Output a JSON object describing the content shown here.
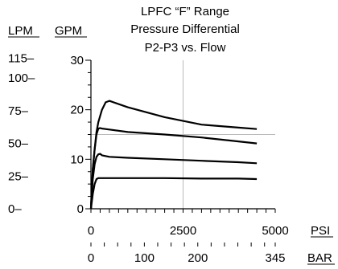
{
  "chart_data": {
    "type": "line",
    "title": [
      "LPFC “F” Range",
      "Pressure Differential",
      "P2-P3 vs. Flow"
    ],
    "xlabel": "PSI",
    "ylabel": "GPM",
    "xlim": [
      0,
      5000
    ],
    "ylim": [
      0,
      30
    ],
    "x_ticks": [
      0,
      2500,
      5000
    ],
    "x_tick_labels": [
      "0",
      "2500",
      "5000"
    ],
    "y_ticks": [
      0,
      10,
      20,
      30
    ],
    "y_tick_labels": [
      "0",
      "10",
      "20",
      "30"
    ],
    "secondary_y": {
      "label": "LPM",
      "tick_labels": [
        "0",
        "25",
        "50",
        "75",
        "100",
        "115"
      ],
      "tick_values_gpm": [
        0,
        6.6,
        13.2,
        19.8,
        26.4,
        30.4
      ]
    },
    "secondary_x": {
      "label": "BAR",
      "tick_labels": [
        "0",
        "100",
        "200",
        "345"
      ],
      "tick_values_psi": [
        0,
        1450,
        2900,
        5000
      ]
    },
    "grid": "center crosshair only",
    "series": [
      {
        "x": [
          0,
          50,
          100,
          150,
          200,
          300,
          500,
          1000,
          2000,
          3000,
          4000,
          4500
        ],
        "y": [
          0,
          3,
          5,
          6,
          6.2,
          6.2,
          6.2,
          6.2,
          6.2,
          6.1,
          6.1,
          6.0
        ]
      },
      {
        "x": [
          0,
          50,
          100,
          150,
          200,
          250,
          300,
          500,
          1000,
          2000,
          3000,
          4000,
          4500
        ],
        "y": [
          0,
          6,
          9,
          10.5,
          11,
          11.1,
          10.8,
          10.5,
          10.3,
          10.0,
          9.7,
          9.4,
          9.2
        ]
      },
      {
        "x": [
          0,
          50,
          100,
          150,
          200,
          250,
          300,
          500,
          1000,
          2000,
          3000,
          4000,
          4500
        ],
        "y": [
          0,
          8,
          12,
          15,
          16.2,
          16.3,
          16.2,
          16.0,
          15.5,
          15.0,
          14.4,
          13.6,
          13.2
        ]
      },
      {
        "x": [
          0,
          50,
          100,
          150,
          200,
          300,
          400,
          500,
          1000,
          2000,
          3000,
          4000,
          4500
        ],
        "y": [
          0,
          8,
          12,
          15.5,
          17.5,
          20.0,
          21.5,
          21.8,
          20.5,
          18.5,
          17.0,
          16.4,
          16.1
        ]
      }
    ]
  }
}
